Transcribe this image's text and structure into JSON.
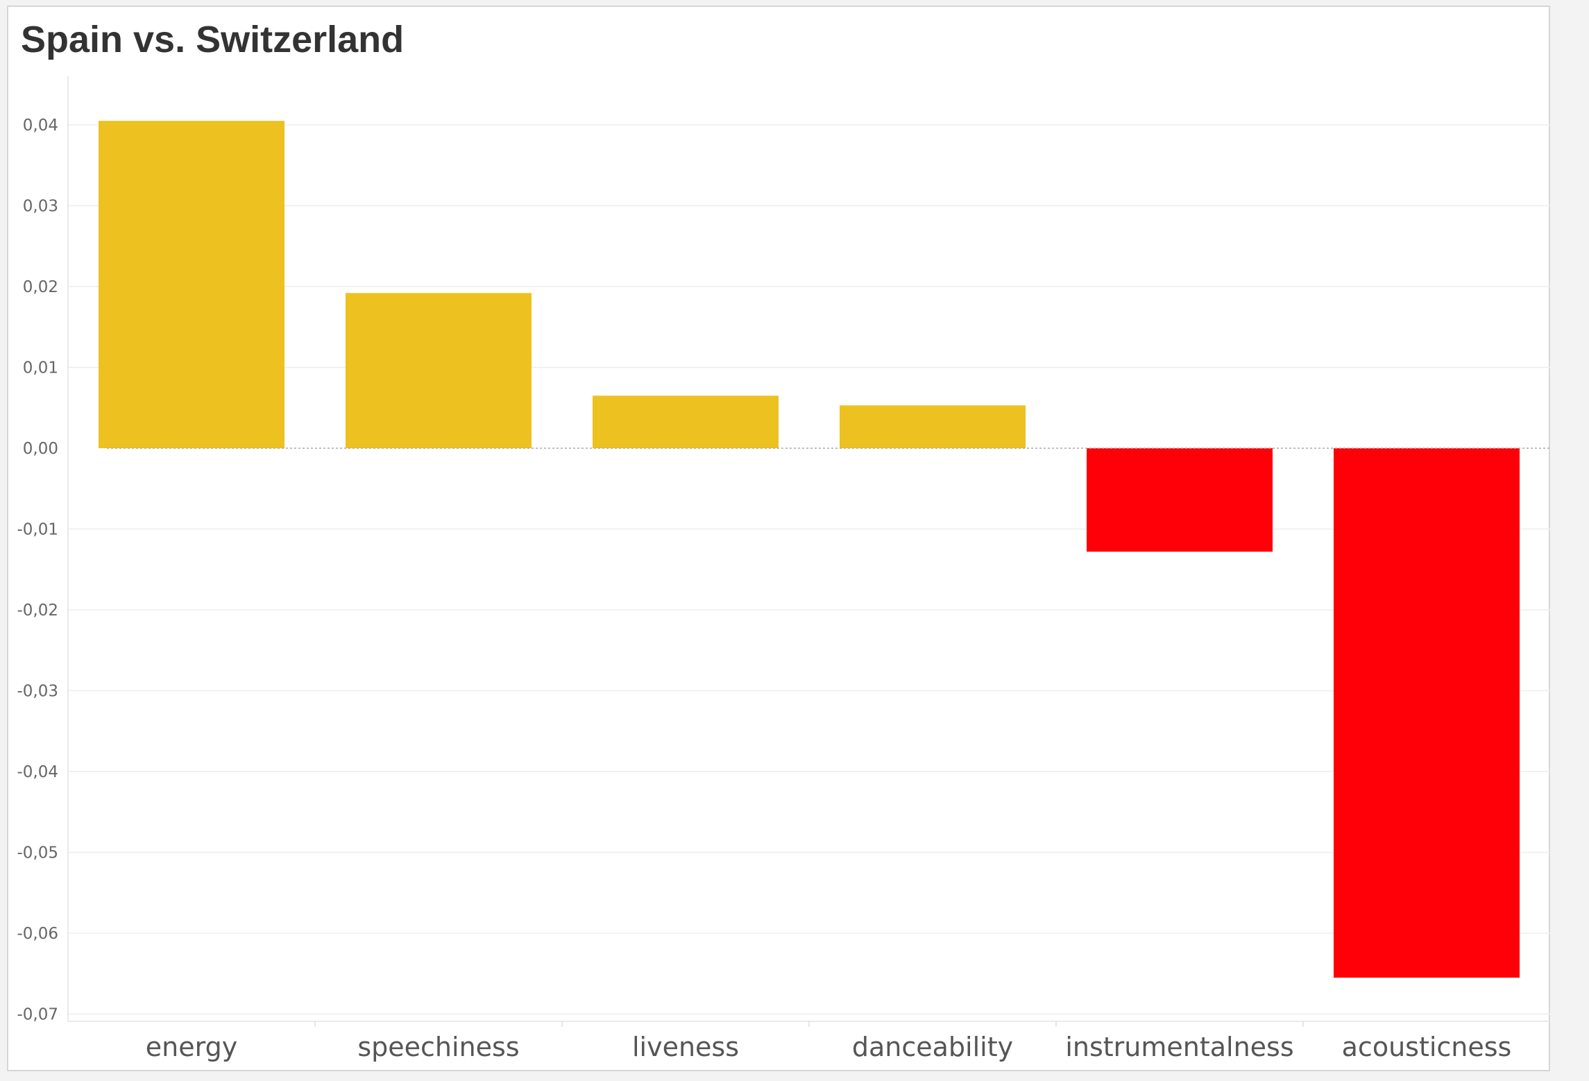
{
  "chart_data": {
    "type": "bar",
    "title": "Spain vs. Switzerland",
    "xlabel": "",
    "ylabel": "",
    "categories": [
      "energy",
      "speechiness",
      "liveness",
      "danceability",
      "instrumentalness",
      "acousticness"
    ],
    "values": [
      0.0405,
      0.0192,
      0.0065,
      0.0053,
      -0.0128,
      -0.0655
    ],
    "ylim": [
      -0.07,
      0.042
    ],
    "yticks": [
      0.04,
      0.03,
      0.02,
      0.01,
      0.0,
      -0.01,
      -0.02,
      -0.03,
      -0.04,
      -0.05,
      -0.06,
      -0.07
    ],
    "ytick_labels": [
      "0,04",
      "0,03",
      "0,02",
      "0,01",
      "0,00",
      "-0,01",
      "-0,02",
      "-0,03",
      "-0,04",
      "-0,05",
      "-0,06",
      "-0,07"
    ],
    "grid": true,
    "legend": "none",
    "colors": {
      "positive": "#EDC120",
      "negative": "#FF0008",
      "gridline": "#eeeeee",
      "zeroline": "#aaaaaa"
    }
  }
}
